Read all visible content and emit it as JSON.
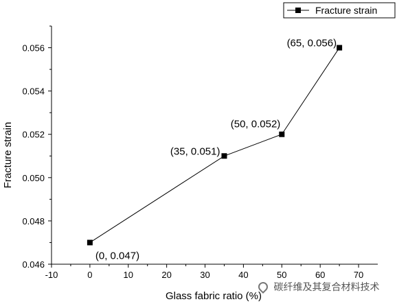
{
  "chart_data": {
    "type": "line",
    "title": "",
    "xlabel": "Glass fabric ratio (%)",
    "ylabel": "Fracture strain",
    "xlim": [
      -10,
      75
    ],
    "ylim": [
      0.046,
      0.057
    ],
    "x_ticks": [
      -10,
      0,
      10,
      20,
      30,
      40,
      50,
      60,
      70
    ],
    "y_ticks": [
      0.046,
      0.048,
      0.05,
      0.052,
      0.054,
      0.056
    ],
    "x_tick_labels": [
      "-10",
      "0",
      "10",
      "20",
      "30",
      "40",
      "50",
      "60",
      "70"
    ],
    "y_tick_labels": [
      "0.046",
      "0.048",
      "0.050",
      "0.052",
      "0.054",
      "0.056"
    ],
    "grid": false,
    "legend_position": "top-right",
    "series": [
      {
        "name": "Fracture strain",
        "x": [
          0,
          35,
          50,
          65
        ],
        "y": [
          0.047,
          0.051,
          0.052,
          0.056
        ],
        "color": "#000000",
        "marker": "square"
      }
    ],
    "annotations": [
      "(0, 0.047)",
      "(35, 0.051)",
      "(50, 0.052)",
      "(65, 0.056)"
    ]
  },
  "watermark": {
    "text": "碳纤维及其复合材料技术",
    "icon": "wechat-logo-icon"
  }
}
